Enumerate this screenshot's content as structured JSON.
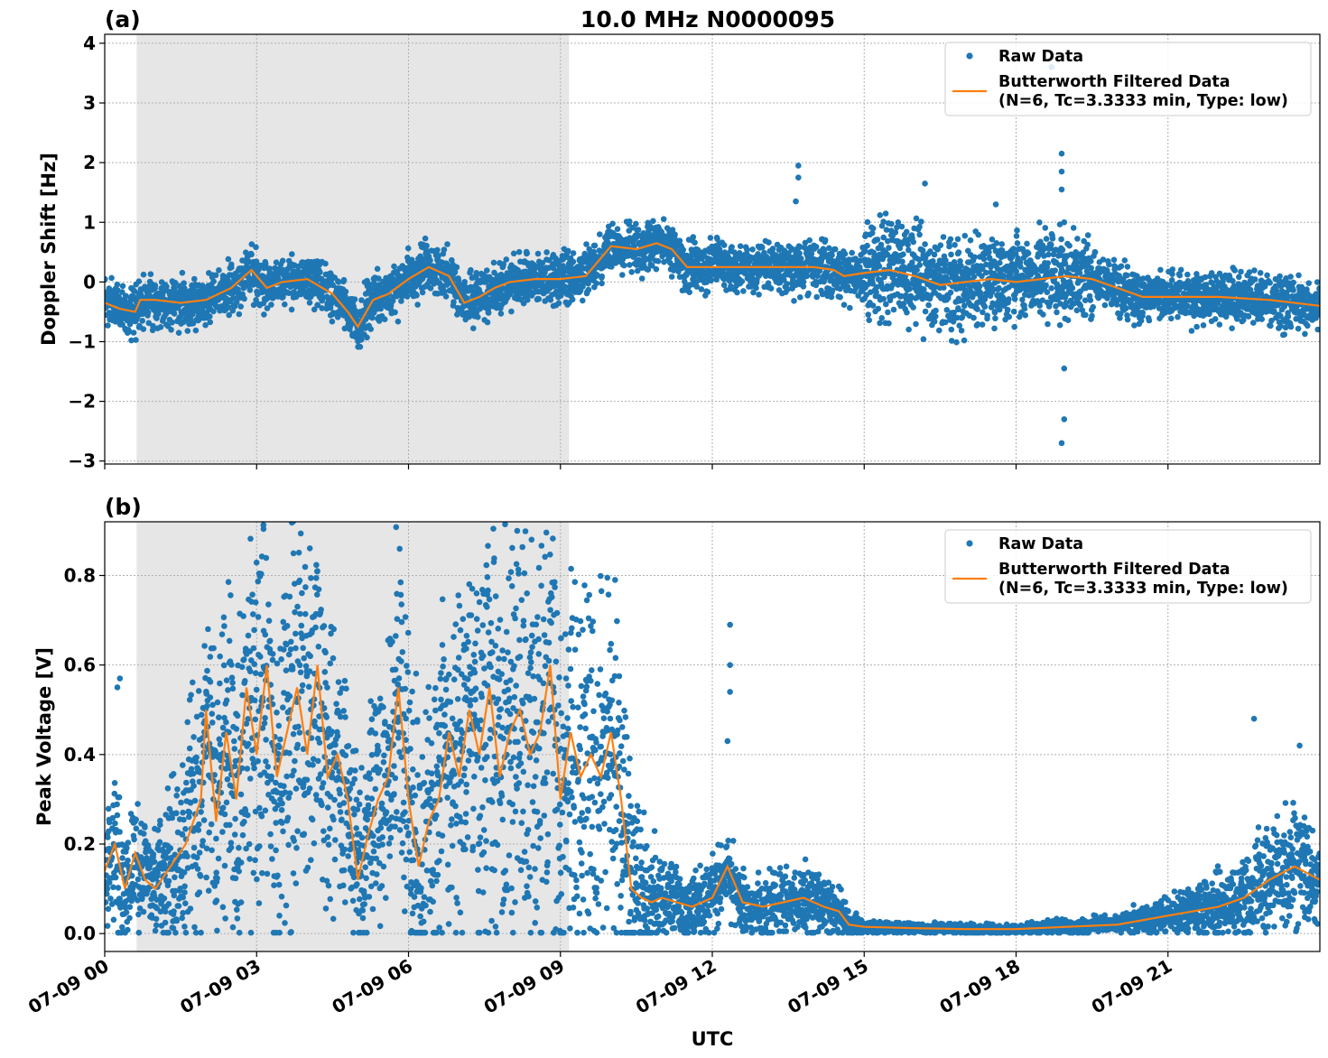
{
  "figure_title": "10.0 MHz N0000095",
  "xlabel": "UTC",
  "colors": {
    "raw": "#1f77b4",
    "filtered": "#ff7f0e",
    "shade": "#e6e6e6",
    "grid": "#b0b0b0"
  },
  "legend": {
    "raw": "Raw Data",
    "filtered_line1": "Butterworth Filtered Data",
    "filtered_line2": "(N=6, Tc=3.3333 min, Type: low)"
  },
  "x_tick_labels": [
    "07-09 00",
    "07-09 03",
    "07-09 06",
    "07-09 09",
    "07-09 12",
    "07-09 15",
    "07-09 18",
    "07-09 21"
  ],
  "chart_data": [
    {
      "panel": "(a)",
      "type": "scatter",
      "title": "10.0 MHz N0000095",
      "xlabel": "",
      "ylabel": "Doppler Shift [Hz]",
      "x_unit": "hours UTC on 07-09",
      "xlim": [
        0,
        24
      ],
      "ylim": [
        -3.05,
        4.15
      ],
      "yticks": [
        -3,
        -2,
        -1,
        0,
        1,
        2,
        3,
        4
      ],
      "ytick_labels": [
        "−3",
        "−2",
        "−1",
        "0",
        "1",
        "2",
        "3",
        "4"
      ],
      "grid": true,
      "legend_position": "top-right",
      "shaded_interval_hours": [
        0.63,
        9.17
      ],
      "series": [
        {
          "name": "Butterworth Filtered Data",
          "style": "line",
          "x": [
            0,
            0.3,
            0.6,
            0.7,
            1.0,
            1.5,
            2.0,
            2.5,
            2.9,
            3.2,
            3.5,
            4.0,
            4.5,
            4.8,
            5.0,
            5.3,
            5.6,
            6.0,
            6.4,
            6.8,
            7.1,
            7.4,
            7.7,
            8.0,
            8.5,
            9.0,
            9.5,
            10.0,
            10.5,
            10.9,
            11.2,
            11.5,
            12.0,
            13.0,
            14.0,
            14.4,
            14.6,
            15.0,
            15.5,
            16.0,
            16.5,
            17.0,
            17.5,
            18.0,
            18.5,
            19.0,
            19.5,
            20.0,
            20.5,
            21.0,
            22.0,
            23.0,
            24.0
          ],
          "y": [
            -0.35,
            -0.45,
            -0.5,
            -0.3,
            -0.3,
            -0.35,
            -0.3,
            -0.1,
            0.2,
            -0.1,
            0.0,
            0.05,
            -0.2,
            -0.5,
            -0.75,
            -0.3,
            -0.2,
            0.05,
            0.25,
            0.1,
            -0.35,
            -0.25,
            -0.1,
            0.0,
            0.05,
            0.05,
            0.1,
            0.6,
            0.55,
            0.65,
            0.55,
            0.25,
            0.25,
            0.25,
            0.25,
            0.2,
            0.1,
            0.15,
            0.2,
            0.1,
            -0.05,
            0.0,
            0.05,
            0.0,
            0.05,
            0.1,
            0.05,
            -0.1,
            -0.25,
            -0.25,
            -0.25,
            -0.3,
            -0.4
          ]
        },
        {
          "name": "Raw Data",
          "style": "points",
          "x": [
            0,
            1,
            2,
            3,
            4,
            5,
            6,
            7,
            8,
            9,
            10,
            11,
            12,
            13,
            14,
            15,
            16,
            17,
            18,
            19,
            20,
            21,
            22,
            23,
            24
          ],
          "y": [
            -0.35,
            -0.3,
            -0.3,
            0.1,
            0.05,
            -0.7,
            0.15,
            -0.3,
            0.0,
            0.05,
            0.6,
            0.6,
            0.25,
            0.25,
            0.25,
            0.15,
            0.1,
            0.0,
            0.0,
            0.1,
            -0.1,
            -0.25,
            -0.25,
            -0.3,
            -0.4
          ]
        }
      ],
      "outliers": {
        "x": [
          13.7,
          13.7,
          13.65,
          18.9,
          18.9,
          18.9,
          18.95,
          18.95,
          18.95,
          18.9,
          16.2,
          17.6,
          18.7
        ],
        "y": [
          1.95,
          1.75,
          1.35,
          2.15,
          1.85,
          1.55,
          1.0,
          -1.45,
          -2.3,
          -2.7,
          1.65,
          1.3,
          3.6
        ]
      }
    },
    {
      "panel": "(b)",
      "type": "scatter",
      "title": "",
      "xlabel": "UTC",
      "ylabel": "Peak Voltage [V]",
      "x_unit": "hours UTC on 07-09",
      "xlim": [
        0,
        24
      ],
      "ylim": [
        -0.04,
        0.92
      ],
      "yticks": [
        0.0,
        0.2,
        0.4,
        0.6,
        0.8
      ],
      "ytick_labels": [
        "0.0",
        "0.2",
        "0.4",
        "0.6",
        "0.8"
      ],
      "grid": true,
      "legend_position": "top-right",
      "shaded_interval_hours": [
        0.63,
        9.17
      ],
      "series": [
        {
          "name": "Butterworth Filtered Data",
          "style": "line",
          "x": [
            0,
            0.2,
            0.4,
            0.6,
            0.8,
            1.0,
            1.3,
            1.6,
            1.9,
            2.0,
            2.2,
            2.4,
            2.6,
            2.8,
            3.0,
            3.2,
            3.4,
            3.6,
            3.8,
            4.0,
            4.2,
            4.4,
            4.6,
            4.8,
            5.0,
            5.2,
            5.4,
            5.6,
            5.8,
            6.0,
            6.2,
            6.4,
            6.6,
            6.8,
            7.0,
            7.2,
            7.4,
            7.6,
            7.8,
            8.0,
            8.2,
            8.4,
            8.6,
            8.8,
            9.0,
            9.2,
            9.4,
            9.6,
            9.8,
            10.0,
            10.2,
            10.4,
            10.6,
            10.8,
            11.0,
            11.3,
            11.6,
            12.0,
            12.3,
            12.6,
            13.0,
            13.4,
            13.8,
            14.2,
            14.5,
            14.7,
            15.0,
            16.0,
            17.0,
            18.0,
            19.0,
            20.0,
            21.0,
            21.5,
            22.0,
            22.5,
            23.0,
            23.5,
            24.0
          ],
          "y": [
            0.14,
            0.2,
            0.1,
            0.18,
            0.12,
            0.1,
            0.15,
            0.2,
            0.3,
            0.5,
            0.25,
            0.45,
            0.3,
            0.55,
            0.4,
            0.6,
            0.35,
            0.45,
            0.55,
            0.4,
            0.6,
            0.35,
            0.4,
            0.3,
            0.12,
            0.22,
            0.3,
            0.35,
            0.55,
            0.3,
            0.15,
            0.25,
            0.3,
            0.45,
            0.35,
            0.5,
            0.4,
            0.55,
            0.35,
            0.45,
            0.5,
            0.4,
            0.45,
            0.6,
            0.3,
            0.45,
            0.35,
            0.4,
            0.35,
            0.45,
            0.3,
            0.1,
            0.08,
            0.07,
            0.08,
            0.07,
            0.06,
            0.08,
            0.15,
            0.07,
            0.06,
            0.07,
            0.08,
            0.06,
            0.05,
            0.02,
            0.015,
            0.012,
            0.01,
            0.01,
            0.015,
            0.02,
            0.04,
            0.05,
            0.06,
            0.08,
            0.12,
            0.15,
            0.12
          ]
        },
        {
          "name": "Raw Data",
          "style": "points",
          "x": [
            0,
            1,
            2,
            3,
            4,
            5,
            6,
            7,
            8,
            9,
            10,
            11,
            12,
            13,
            14,
            15,
            16,
            17,
            18,
            19,
            20,
            21,
            22,
            23,
            24
          ],
          "y": [
            0.14,
            0.12,
            0.3,
            0.45,
            0.45,
            0.2,
            0.35,
            0.4,
            0.45,
            0.45,
            0.4,
            0.08,
            0.08,
            0.07,
            0.07,
            0.015,
            0.012,
            0.01,
            0.01,
            0.015,
            0.02,
            0.04,
            0.07,
            0.12,
            0.12
          ]
        }
      ],
      "outliers": {
        "x": [
          12.35,
          12.35,
          12.35,
          12.3,
          0.3,
          0.25,
          22.7,
          23.6
        ],
        "y": [
          0.69,
          0.6,
          0.54,
          0.43,
          0.57,
          0.55,
          0.48,
          0.42
        ]
      }
    }
  ]
}
